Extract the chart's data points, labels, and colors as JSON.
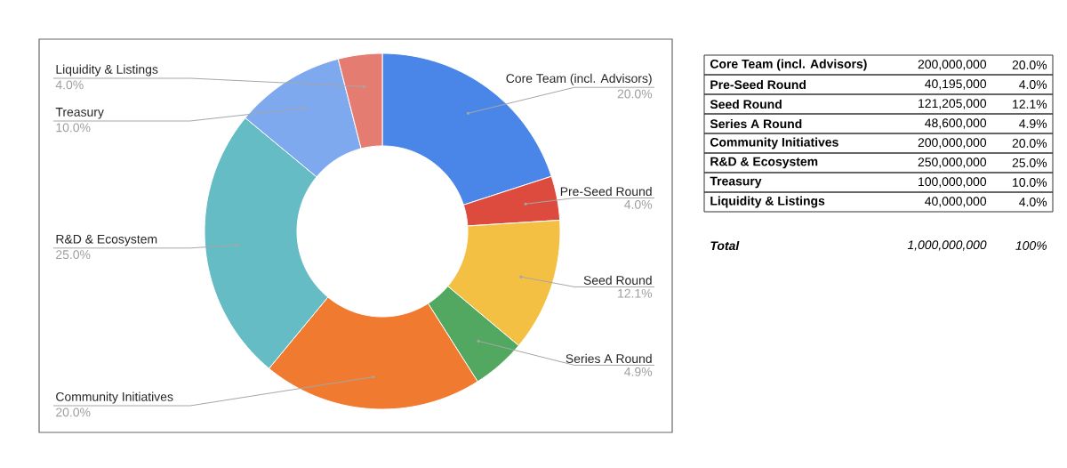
{
  "chart_data": {
    "type": "donut",
    "categories": [
      "Core Team (incl. Advisors)",
      "Pre-Seed Round",
      "Seed Round",
      "Series A Round",
      "Community Initiatives",
      "R&D & Ecosystem",
      "Treasury",
      "Liquidity & Listings"
    ],
    "values": [
      20.0,
      4.0,
      12.1,
      4.9,
      20.0,
      25.0,
      10.0,
      4.0
    ],
    "value_labels": [
      "20.0%",
      "4.0%",
      "12.1%",
      "4.9%",
      "20.0%",
      "25.0%",
      "10.0%",
      "4.0%"
    ],
    "colors": [
      "#4a86e8",
      "#dd4b3e",
      "#f4c044",
      "#53a861",
      "#ef7a30",
      "#66bcc5",
      "#7fa9ef",
      "#e57c72"
    ],
    "data_labels": true,
    "annotations": [
      "200,000,000",
      "40,195,000",
      "121,205,000",
      "48,600,000",
      "200,000,000",
      "250,000,000",
      "100,000,000",
      "40,000,000",
      "Total",
      "1,000,000,000",
      "100%"
    ]
  }
}
